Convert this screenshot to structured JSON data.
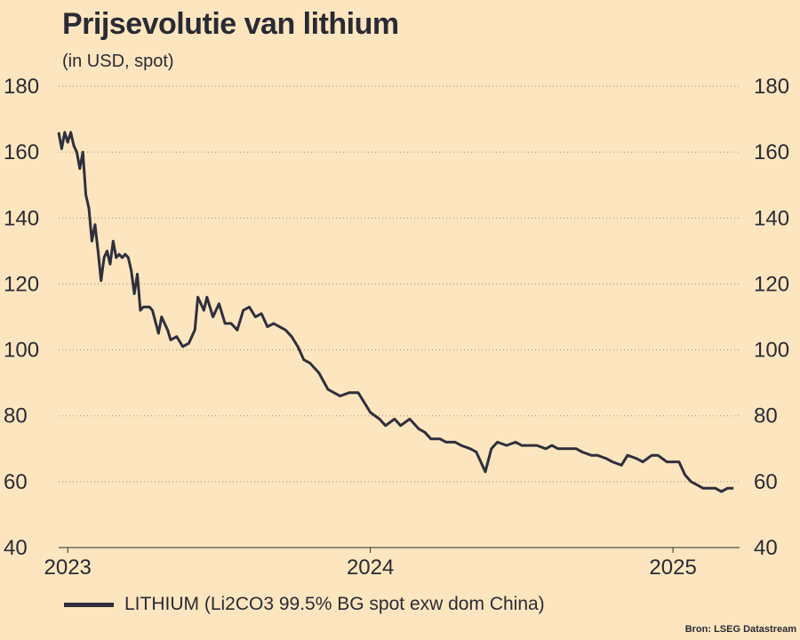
{
  "chart_data": {
    "type": "line",
    "title": "Prijsevolutie van lithium",
    "subtitle": "(in USD, spot)",
    "ylim": [
      40,
      180
    ],
    "yticks": [
      "180",
      "160",
      "140",
      "120",
      "100",
      "80",
      "60",
      "40"
    ],
    "xticks": [
      "2023",
      "2024",
      "2025"
    ],
    "grid": "horizontal dotted",
    "legend_position": "bottom",
    "source": "Bron: LSEG Datastream",
    "series": [
      {
        "name": "LITHIUM (Li2CO3 99.5% BG spot exw dom China)",
        "color": "#2f2f3d",
        "x": [
          2022.97,
          2022.98,
          2022.99,
          2023.0,
          2023.01,
          2023.02,
          2023.03,
          2023.04,
          2023.05,
          2023.06,
          2023.07,
          2023.08,
          2023.09,
          2023.1,
          2023.11,
          2023.12,
          2023.13,
          2023.14,
          2023.15,
          2023.16,
          2023.17,
          2023.18,
          2023.19,
          2023.2,
          2023.21,
          2023.22,
          2023.23,
          2023.24,
          2023.25,
          2023.27,
          2023.28,
          2023.3,
          2023.31,
          2023.33,
          2023.34,
          2023.36,
          2023.38,
          2023.4,
          2023.42,
          2023.43,
          2023.45,
          2023.46,
          2023.48,
          2023.5,
          2023.52,
          2023.54,
          2023.56,
          2023.58,
          2023.6,
          2023.62,
          2023.64,
          2023.66,
          2023.68,
          2023.7,
          2023.72,
          2023.74,
          2023.76,
          2023.78,
          2023.8,
          2023.83,
          2023.86,
          2023.88,
          2023.9,
          2023.93,
          2023.96,
          2024.0,
          2024.03,
          2024.05,
          2024.08,
          2024.1,
          2024.13,
          2024.16,
          2024.18,
          2024.2,
          2024.23,
          2024.25,
          2024.28,
          2024.3,
          2024.33,
          2024.35,
          2024.38,
          2024.4,
          2024.42,
          2024.45,
          2024.48,
          2024.5,
          2024.52,
          2024.55,
          2024.58,
          2024.6,
          2024.62,
          2024.65,
          2024.68,
          2024.7,
          2024.73,
          2024.75,
          2024.78,
          2024.8,
          2024.83,
          2024.85,
          2024.88,
          2024.9,
          2024.93,
          2024.95,
          2024.98,
          2025.0,
          2025.02,
          2025.04,
          2025.06,
          2025.08,
          2025.1,
          2025.12,
          2025.14,
          2025.16,
          2025.18,
          2025.2
        ],
        "values": [
          166,
          161,
          166,
          163,
          166,
          162,
          160,
          155,
          160,
          147,
          143,
          133,
          138,
          130,
          121,
          128,
          130,
          126,
          133,
          128,
          129,
          128,
          129,
          128,
          124,
          117,
          123,
          112,
          113,
          113,
          112,
          105,
          110,
          106,
          103,
          104,
          101,
          102,
          106,
          116,
          112,
          116,
          110,
          114,
          108,
          108,
          106,
          112,
          113,
          110,
          111,
          107,
          108,
          107,
          106,
          104,
          101,
          97,
          96,
          93,
          88,
          87,
          86,
          87,
          87,
          81,
          79,
          77,
          79,
          77,
          79,
          76,
          75,
          73,
          73,
          72,
          72,
          71,
          70,
          69,
          63,
          70,
          72,
          71,
          72,
          71,
          71,
          71,
          70,
          71,
          70,
          70,
          70,
          69,
          68,
          68,
          67,
          66,
          65,
          68,
          67,
          66,
          68,
          68,
          66,
          66,
          66,
          62,
          60,
          59,
          58,
          58,
          58,
          57,
          58,
          58
        ]
      }
    ]
  }
}
